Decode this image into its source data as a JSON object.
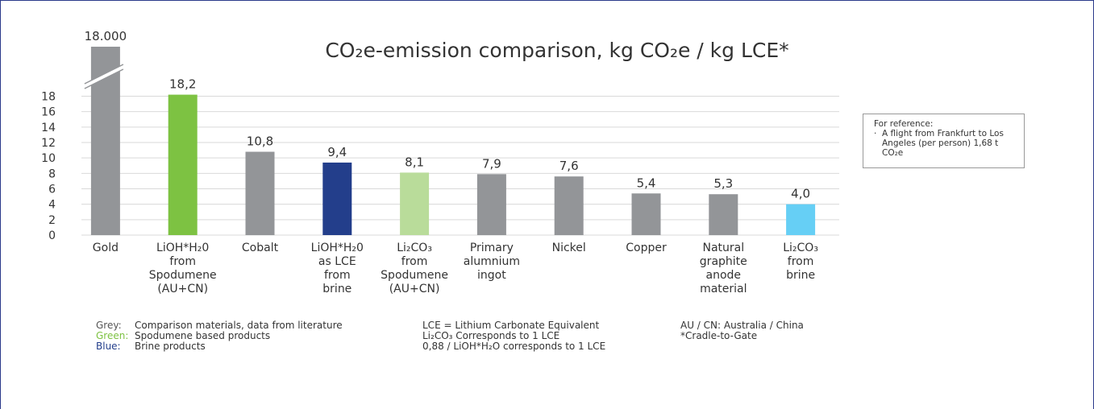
{
  "chart_data": {
    "type": "bar",
    "title": "CO₂e-emission comparison, kg CO₂e / kg LCE*",
    "categories": [
      "Gold",
      "LiOH*H₂0\nfrom\nSpodumene\n(AU+CN)",
      "Cobalt",
      "LiOH*H₂0\nas LCE\nfrom\nbrine",
      "Li₂CO₃\nfrom\nSpodumene\n(AU+CN)",
      "Primary\nalumnium\ningot",
      "Nickel",
      "Copper",
      "Natural\ngraphite\nanode\nmaterial",
      "Li₂CO₃\nfrom\nbrine"
    ],
    "values": [
      18000,
      18.2,
      10.8,
      9.4,
      8.1,
      7.9,
      7.6,
      5.4,
      5.3,
      4.0
    ],
    "value_labels": [
      "18.000",
      "18,2",
      "10,8",
      "9,4",
      "8,1",
      "7,9",
      "7,6",
      "5,4",
      "5,3",
      "4,0"
    ],
    "colors": [
      "#939598",
      "#7dc242",
      "#939598",
      "#233e8b",
      "#b9dc9a",
      "#939598",
      "#939598",
      "#939598",
      "#939598",
      "#66cff5"
    ],
    "ylim": [
      0,
      24
    ],
    "yticks": [
      0,
      2,
      4,
      6,
      8,
      10,
      12,
      14,
      16,
      18
    ],
    "axis_break": true,
    "grid": true,
    "legend": [
      {
        "label": "Grey:",
        "text": "Comparison materials, data from literature",
        "color": "#555555"
      },
      {
        "label": "Green:",
        "text": "Spodumene based products",
        "color": "#7dc242"
      },
      {
        "label": "Blue:",
        "text": "Brine products",
        "color": "#233e8b"
      }
    ],
    "notes_middle": [
      "LCE = Lithium Carbonate Equivalent",
      "Li₂CO₃ Corresponds to 1 LCE",
      "0,88 / LiOH*H₂O corresponds to 1 LCE"
    ],
    "notes_right": [
      "AU / CN: Australia / China",
      "*Cradle-to-Gate"
    ],
    "reference": {
      "title": "For reference:",
      "bullet": "·",
      "text": "A flight from Frankfurt to Los Angeles (per person) 1,68 t CO₂e"
    }
  }
}
